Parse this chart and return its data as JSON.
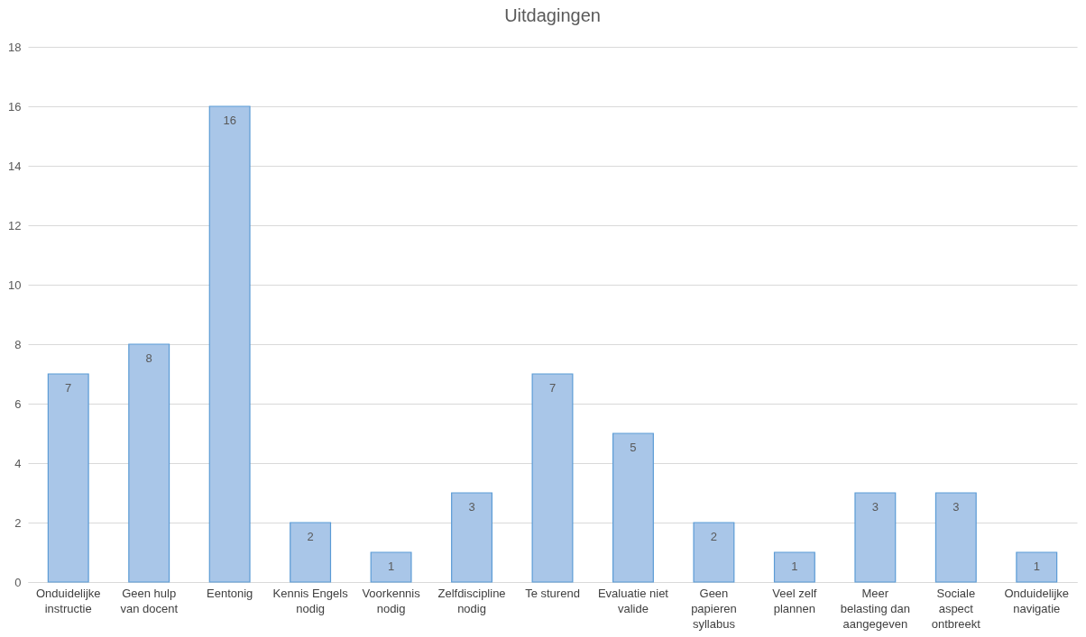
{
  "chart_data": {
    "type": "bar",
    "title": "Uitdagingen",
    "categories": [
      "Onduidelijke instructie",
      "Geen hulp van docent",
      "Eentonig",
      "Kennis Engels nodig",
      "Voorkennis nodig",
      "Zelfdiscipline nodig",
      "Te sturend",
      "Evaluatie niet valide",
      "Geen papieren syllabus",
      "Veel zelf plannen",
      "Meer belasting dan aangegeven",
      "Sociale aspect ontbreekt",
      "Onduidelijke navigatie"
    ],
    "values": [
      7,
      8,
      16,
      2,
      1,
      3,
      7,
      5,
      2,
      1,
      3,
      3,
      1
    ],
    "color": "#a9c6e8",
    "ylim": [
      0,
      18
    ],
    "yticks": [
      0,
      2,
      4,
      6,
      8,
      10,
      12,
      14,
      16,
      18
    ],
    "grid": "y",
    "data_labels": true
  }
}
